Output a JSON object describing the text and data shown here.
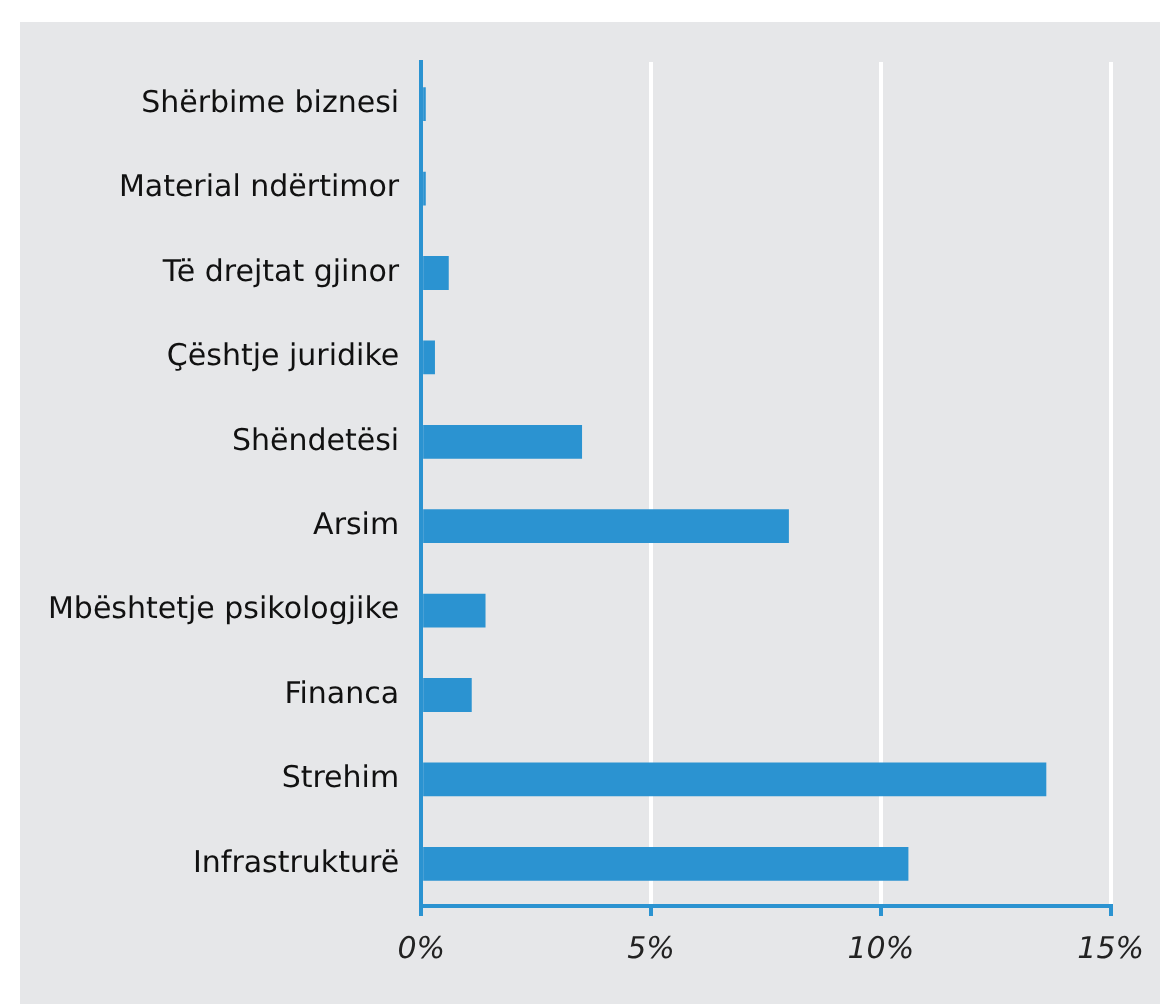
{
  "chart_data": {
    "type": "bar",
    "orientation": "horizontal",
    "categories": [
      "Shërbime biznesi",
      "Material ndërtimor",
      "Të drejtat gjinor",
      "Çështje juridike",
      "Shëndetësi",
      "Arsim",
      "Mbështetje psikologjike",
      "Financa",
      "Strehim",
      "Infrastrukturë"
    ],
    "values": [
      0.1,
      0.1,
      0.6,
      0.3,
      3.5,
      8.0,
      1.4,
      1.1,
      13.6,
      10.6
    ],
    "color": "#2b93d1",
    "xlim": [
      0,
      15
    ],
    "xticks": [
      {
        "value": 0,
        "label": "0%"
      },
      {
        "value": 5,
        "label": "5%"
      },
      {
        "value": 10,
        "label": "10%"
      },
      {
        "value": 15,
        "label": "15%"
      }
    ],
    "grid": "x",
    "legend": false
  }
}
